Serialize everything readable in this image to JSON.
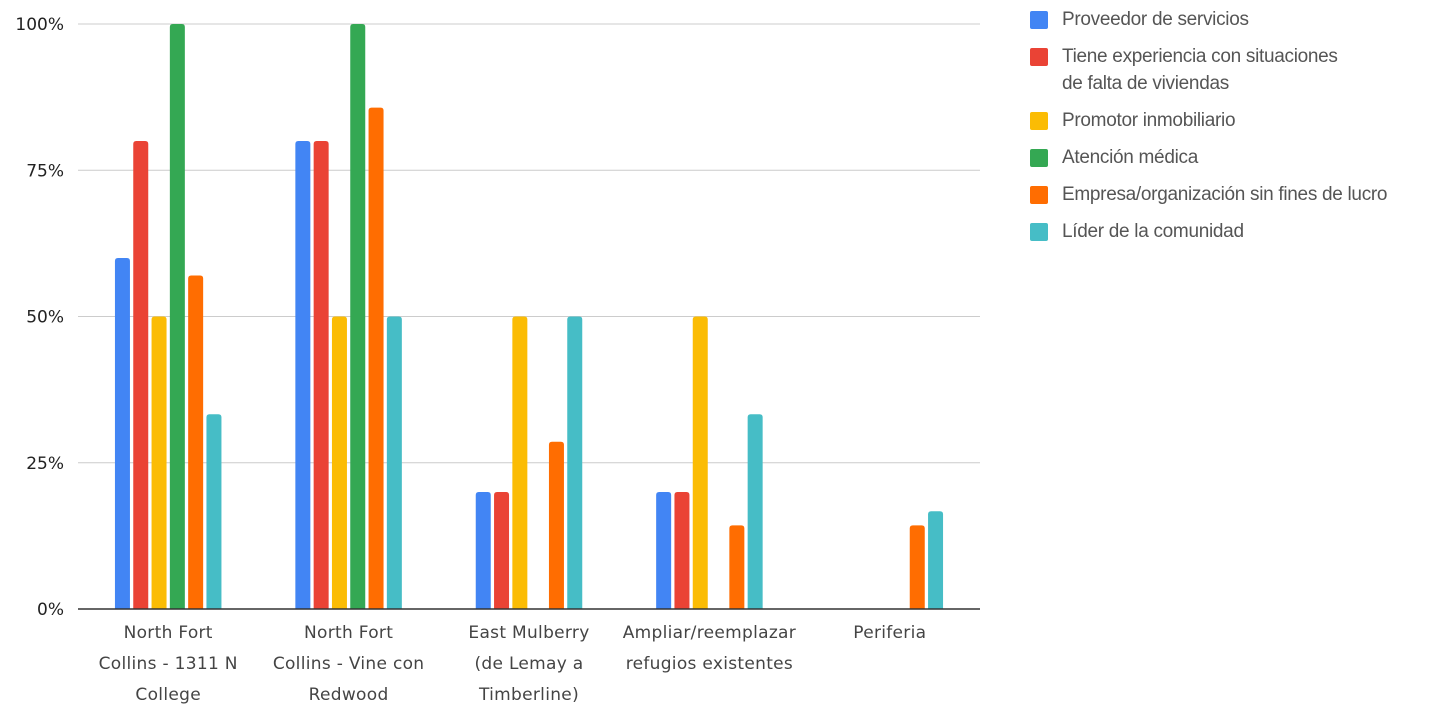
{
  "chart_data": {
    "type": "bar",
    "title": "",
    "xlabel": "",
    "ylabel": "",
    "ylim": [
      0,
      1
    ],
    "yticks": [
      "0%",
      "25%",
      "50%",
      "75%",
      "100%"
    ],
    "grid": true,
    "legend_position": "right",
    "categories": [
      [
        "North Fort",
        "Collins - 1311 N",
        "College"
      ],
      [
        "North Fort",
        "Collins - Vine con",
        "Redwood"
      ],
      [
        "East Mulberry",
        "(de Lemay a",
        "Timberline)"
      ],
      [
        "Ampliar/reemplazar",
        "refugios existentes"
      ],
      [
        "Periferia"
      ]
    ],
    "series": [
      {
        "name": "Proveedor de servicios",
        "color": "#4285f4",
        "values": [
          0.6,
          0.8,
          0.2,
          0.2,
          0
        ]
      },
      {
        "name": "Tiene experiencia con situaciones de falta de viviendas",
        "name_lines": [
          "Tiene experiencia con situaciones",
          "de falta de viviendas"
        ],
        "color": "#ea4335",
        "values": [
          0.8,
          0.8,
          0.2,
          0.2,
          0
        ]
      },
      {
        "name": "Promotor inmobiliario",
        "color": "#fbbc04",
        "values": [
          0.5,
          0.5,
          0.5,
          0.5,
          0
        ]
      },
      {
        "name": "Atención médica",
        "color": "#34a853",
        "values": [
          1.0,
          1.0,
          0,
          0,
          0
        ]
      },
      {
        "name": "Empresa/organización sin fines de lucro",
        "color": "#ff6d01",
        "values": [
          0.57,
          0.857,
          0.286,
          0.143,
          0.143
        ]
      },
      {
        "name": "Líder de la comunidad",
        "color": "#46bdc6",
        "values": [
          0.333,
          0.5,
          0.5,
          0.333,
          0.167
        ]
      }
    ]
  }
}
